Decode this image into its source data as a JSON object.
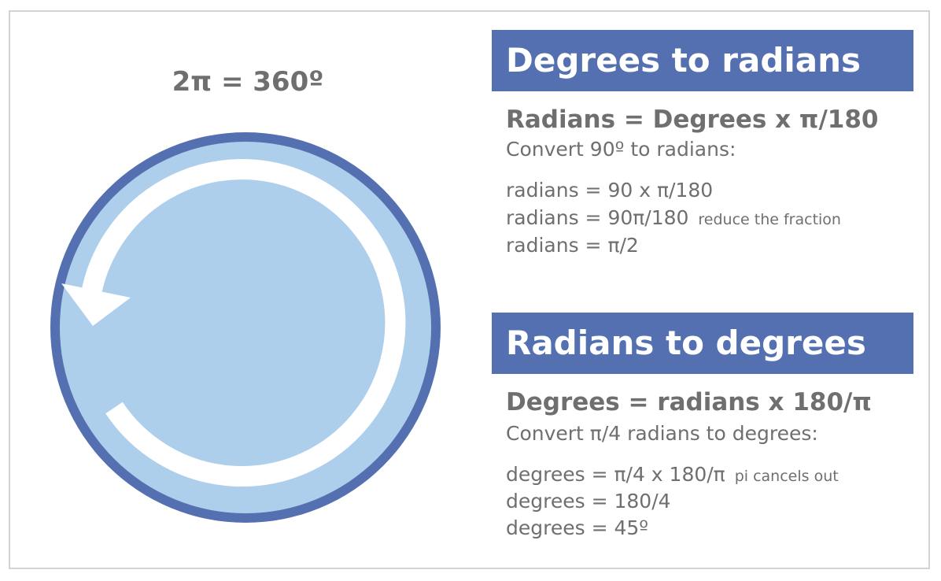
{
  "circle": {
    "label": "2π = 360º",
    "ring_color": "#5470b1",
    "fill_color": "#aecfec",
    "arrow_color": "#ffffff"
  },
  "degrees_to_radians": {
    "header": "Degrees to radians",
    "formula": "Radians = Degrees x π/180",
    "prompt": "Convert 90º to radians:",
    "steps": [
      {
        "text": "radians = 90 x π/180",
        "note": ""
      },
      {
        "text": "radians = 90π/180",
        "note": "reduce the fraction"
      },
      {
        "text": "radians = π/2",
        "note": ""
      }
    ]
  },
  "radians_to_degrees": {
    "header": "Radians to degrees",
    "formula": "Degrees = radians x 180/π",
    "prompt": "Convert π/4 radians to degrees:",
    "steps": [
      {
        "text": "degrees = π/4 x 180/π",
        "note": "pi cancels out"
      },
      {
        "text": "degrees = 180/4",
        "note": ""
      },
      {
        "text": "degrees = 45º",
        "note": ""
      }
    ]
  },
  "colors": {
    "header_bg": "#5470b1",
    "text": "#6f6f6f",
    "frame_border": "#d3d3d3"
  }
}
